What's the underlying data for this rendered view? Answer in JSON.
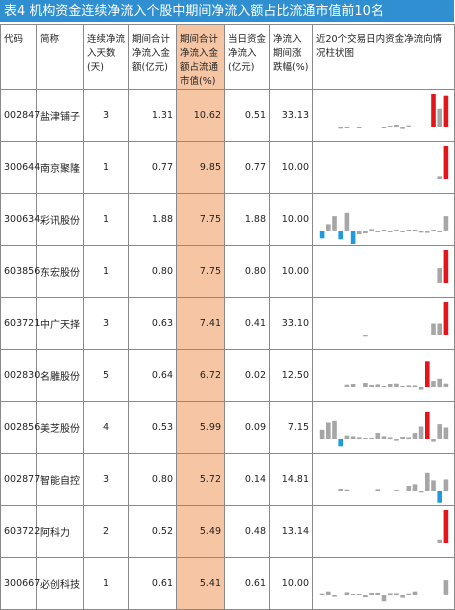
{
  "title": "表4  机构资金连续净流入个股中期间净流入额占比流通市值前10名",
  "headers": {
    "code": "代码",
    "name": "简称",
    "days": "连续净流入天数(天)",
    "total": "期间合计净流入金额(亿元)",
    "ratio": "期间合计净流入金额占流通市值(%)",
    "today": "当日资金净流入(亿元)",
    "change": "净流入期间涨跌幅(%)",
    "chart": "近20个交易日内资金净流向情况柱状图"
  },
  "colors": {
    "title_bg": "#2f8fd0",
    "highlight": "#f6c6a4",
    "bar_gray": "#a6a6a6",
    "bar_red": "#e4141b",
    "bar_blue": "#1e9be0"
  },
  "rows": [
    {
      "code": "002847",
      "name": "盐津铺子",
      "days": "3",
      "total": "1.31",
      "ratio": "10.62",
      "today": "0.51",
      "change": "33.13",
      "bars": [
        0,
        0,
        0,
        -0.05,
        -0.03,
        0,
        -0.04,
        0,
        0,
        0,
        -0.03,
        0.02,
        0.06,
        -0.06,
        0.04,
        0,
        0,
        0,
        1.0,
        0.55,
        0.95
      ]
    },
    {
      "code": "300644",
      "name": "南京聚隆",
      "days": "1",
      "total": "0.77",
      "ratio": "9.85",
      "today": "0.77",
      "change": "10.00",
      "bars": [
        0,
        0,
        0,
        0,
        0,
        0,
        0,
        0,
        0,
        0,
        0,
        0,
        0,
        0,
        0,
        0,
        0,
        0,
        0,
        0.08,
        1.0
      ]
    },
    {
      "code": "300634",
      "name": "彩讯股份",
      "days": "1",
      "total": "1.88",
      "ratio": "7.75",
      "today": "1.88",
      "change": "10.00",
      "bars": [
        -0.28,
        0.2,
        0.45,
        -0.32,
        0.55,
        -0.6,
        -0.12,
        -0.08,
        0.05,
        -0.03,
        0.02,
        -0.04,
        0.03,
        -0.02,
        0.02,
        0.03,
        -0.05,
        -0.06,
        0.03,
        -0.02,
        0.45
      ]
    },
    {
      "code": "603856",
      "name": "东宏股份",
      "days": "1",
      "total": "0.80",
      "ratio": "7.75",
      "today": "0.80",
      "change": "10.00",
      "bars": [
        0,
        0,
        0,
        0,
        0,
        0,
        0,
        0,
        0,
        0,
        0,
        0,
        0,
        0,
        0,
        0,
        0,
        0,
        0,
        0.45,
        1.0
      ]
    },
    {
      "code": "603721",
      "name": "中广天择",
      "days": "3",
      "total": "0.63",
      "ratio": "7.41",
      "today": "0.41",
      "change": "33.10",
      "bars": [
        0,
        0,
        0,
        0,
        0,
        0,
        0,
        -0.05,
        0,
        0,
        0,
        0,
        0,
        0,
        0,
        0,
        0,
        0,
        0.35,
        0.35,
        1.0
      ]
    },
    {
      "code": "002830",
      "name": "名雕股份",
      "days": "5",
      "total": "0.64",
      "ratio": "6.72",
      "today": "0.02",
      "change": "12.50",
      "bars": [
        0,
        0,
        0,
        0,
        0.07,
        0.09,
        0,
        0.12,
        0.06,
        0.08,
        0.02,
        0.09,
        0.1,
        0.03,
        0.05,
        0.05,
        -0.1,
        0.78,
        0.18,
        0.25,
        0.1
      ]
    },
    {
      "code": "002856",
      "name": "美芝股份",
      "days": "4",
      "total": "0.53",
      "ratio": "5.99",
      "today": "0.09",
      "change": "7.15",
      "bars": [
        0.28,
        0.5,
        0.55,
        -0.28,
        0.1,
        0.08,
        0.05,
        0.03,
        0.03,
        0.18,
        0.08,
        0.05,
        -0.06,
        0.06,
        0.05,
        0.18,
        0.38,
        0.82,
        -0.1,
        0.45,
        0.35
      ]
    },
    {
      "code": "002877",
      "name": "智能自控",
      "days": "3",
      "total": "0.80",
      "ratio": "5.72",
      "today": "0.14",
      "change": "14.81",
      "bars": [
        0,
        0,
        0,
        0.06,
        0.04,
        0,
        0,
        0,
        0,
        0.05,
        0,
        0,
        0.03,
        0,
        0.15,
        0.2,
        -0.05,
        0.55,
        0.32,
        -0.45,
        0.35
      ]
    },
    {
      "code": "603722",
      "name": "阿科力",
      "days": "2",
      "total": "0.52",
      "ratio": "5.49",
      "today": "0.48",
      "change": "13.14",
      "bars": [
        0,
        0,
        0,
        0,
        0,
        0,
        0,
        0,
        0,
        0,
        0,
        0,
        0,
        0,
        0,
        0,
        0,
        0,
        0,
        0.1,
        1.0
      ]
    },
    {
      "code": "300667",
      "name": "必创科技",
      "days": "1",
      "total": "0.61",
      "ratio": "5.41",
      "today": "0.61",
      "change": "10.00",
      "bars": [
        0.04,
        0.1,
        -0.06,
        0,
        0.08,
        0.03,
        0.03,
        -0.08,
        0.06,
        0.06,
        -0.24,
        0.05,
        0.05,
        -0.1,
        0.04,
        0.1,
        0,
        0,
        0,
        0,
        0.45
      ]
    }
  ]
}
